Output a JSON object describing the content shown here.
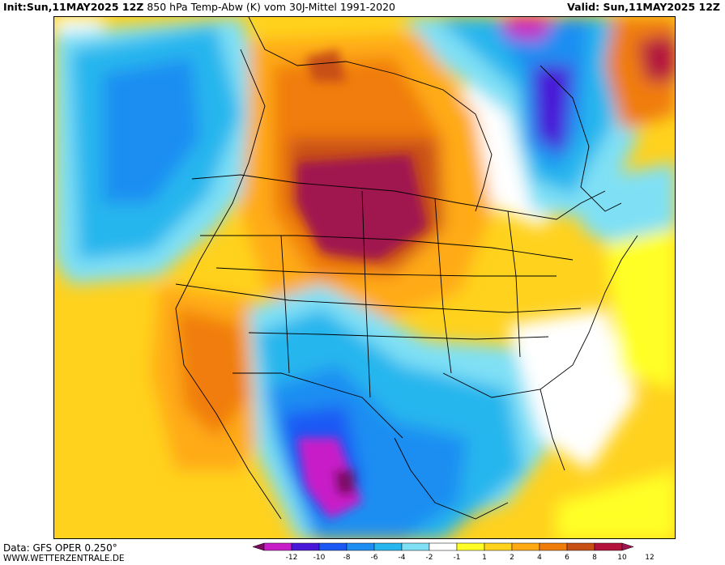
{
  "header": {
    "init_label": "Init:",
    "init_time": "Sun,11MAY2025 12Z",
    "title": "850 hPa Temp-Abw (K) vom 30J-Mittel 1991-2020",
    "valid_label": "Valid:",
    "valid_time": "Sun,11MAY2025 12Z"
  },
  "footer": {
    "data_source": "Data: GFS OPER 0.250°",
    "website": "WWW.WETTERZENTRALE.DE"
  },
  "legend": {
    "ticks": [
      "-12",
      "-10",
      "-8",
      "-6",
      "-4",
      "-2",
      "-1",
      "1",
      "2",
      "4",
      "6",
      "8",
      "10",
      "12"
    ],
    "colors": {
      "le_-12": "#7a0c5e",
      "-12_-10": "#c81ec8",
      "-10_-8": "#4a18d8",
      "-8_-6": "#1c58f4",
      "-6_-4": "#1f8ef2",
      "-4_-2": "#28b6ee",
      "-2_-1": "#7fe0f5",
      "-1_1": "#ffffff",
      "1_2": "#ffff28",
      "2_4": "#ffd21e",
      "4_6": "#ffaa14",
      "6_8": "#f07d0a",
      "8_10": "#c85014",
      "10_12": "#b4143c",
      "ge_12": "#a01450"
    }
  },
  "map": {
    "field": "850 hPa temperature anomaly (K)",
    "features": [
      {
        "name": "warm-core-northern-plains",
        "anomaly_class": "ge_12"
      },
      {
        "name": "cold-core-mexico",
        "anomaly_class": "-12_-10"
      },
      {
        "name": "cold-region-northern-quebec",
        "anomaly_class": "-10_-8"
      },
      {
        "name": "cold-region-pacific",
        "anomaly_class": "-4_-2"
      },
      {
        "name": "warm-region-west-coast",
        "anomaly_class": "6_8"
      }
    ]
  }
}
